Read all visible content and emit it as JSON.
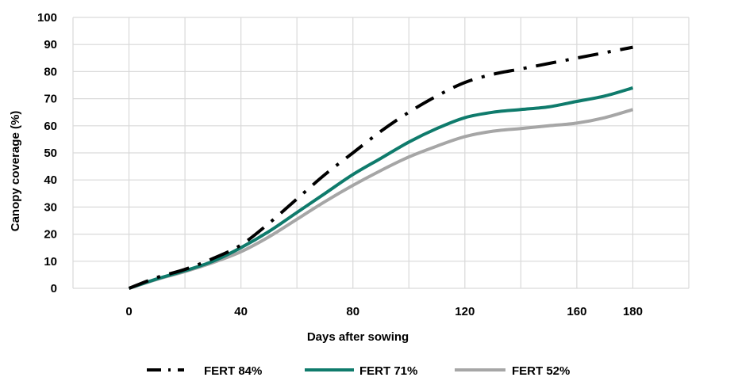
{
  "chart_data": {
    "type": "line",
    "title": "",
    "xlabel": "Days after sowing",
    "ylabel": "Canopy coverage (%)",
    "xlim": [
      -20,
      200
    ],
    "ylim": [
      0,
      100
    ],
    "x_ticks": [
      "0",
      "40",
      "80",
      "120",
      "160",
      "180"
    ],
    "y_ticks": [
      "0",
      "10",
      "20",
      "30",
      "40",
      "50",
      "60",
      "70",
      "80",
      "90",
      "100"
    ],
    "grid": true,
    "legend_position": "bottom",
    "series": [
      {
        "name": "FERT 84%",
        "color": "#000000",
        "style": "dash-dot",
        "x": [
          0,
          10,
          20,
          30,
          40,
          50,
          60,
          70,
          80,
          90,
          100,
          110,
          120,
          130,
          140,
          150,
          160,
          170,
          180
        ],
        "y": [
          0,
          4,
          7,
          11,
          16,
          24,
          33,
          42,
          50,
          58,
          65,
          71,
          76,
          79,
          81,
          83,
          85,
          87,
          89
        ]
      },
      {
        "name": "FERT 71%",
        "color": "#0f7b6c",
        "style": "solid",
        "x": [
          0,
          10,
          20,
          30,
          40,
          50,
          60,
          70,
          80,
          90,
          100,
          110,
          120,
          130,
          140,
          150,
          160,
          170,
          180
        ],
        "y": [
          0,
          3.5,
          6.5,
          10,
          15,
          21,
          28,
          35,
          42,
          48,
          54,
          59,
          63,
          65,
          66,
          67,
          69,
          71,
          74
        ]
      },
      {
        "name": "FERT 52%",
        "color": "#a6a6a6",
        "style": "solid",
        "x": [
          0,
          10,
          20,
          30,
          40,
          50,
          60,
          70,
          80,
          90,
          100,
          110,
          120,
          130,
          140,
          150,
          160,
          170,
          180
        ],
        "y": [
          0,
          3.3,
          6.2,
          9.5,
          13.5,
          19,
          25.5,
          32,
          38,
          43.5,
          48.5,
          52.5,
          56,
          58,
          59,
          60,
          61,
          63,
          66
        ]
      }
    ]
  }
}
